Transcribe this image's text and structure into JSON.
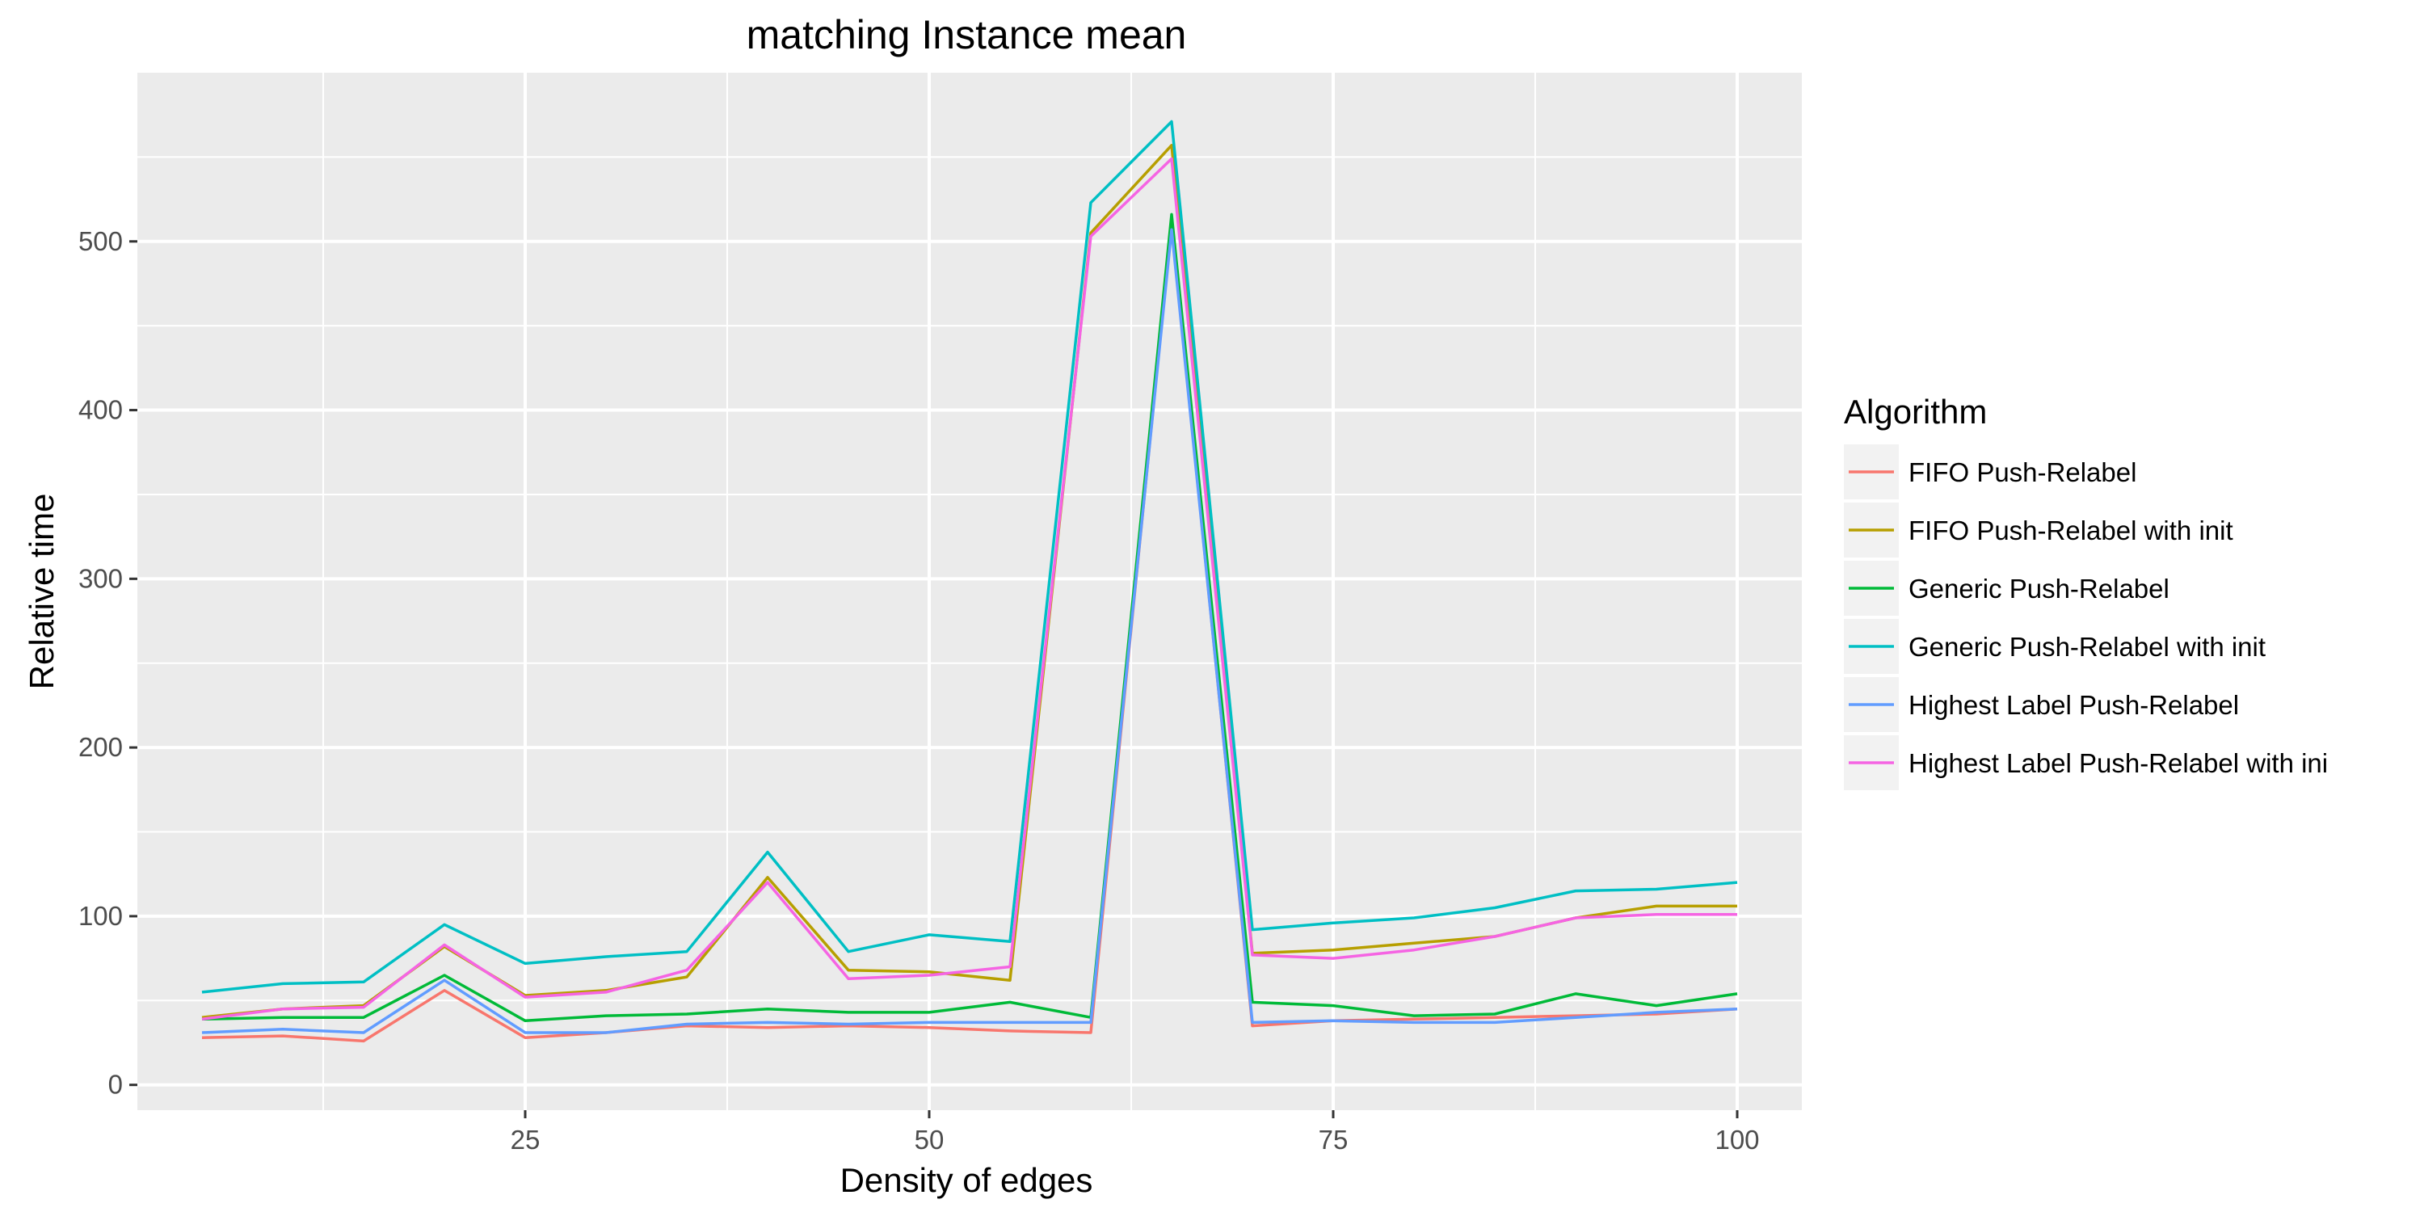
{
  "chart_data": {
    "type": "line",
    "title": "matching Instance mean",
    "xlabel": "Density of edges",
    "ylabel": "Relative time",
    "xlim": [
      1,
      104
    ],
    "ylim": [
      -15,
      600
    ],
    "x_ticks": [
      25,
      50,
      75,
      100
    ],
    "y_ticks": [
      0,
      100,
      200,
      300,
      400,
      500
    ],
    "grid": true,
    "legend": {
      "title": "Algorithm",
      "position": "right"
    },
    "x": [
      5,
      10,
      15,
      20,
      25,
      30,
      35,
      40,
      45,
      50,
      55,
      60,
      65,
      70,
      75,
      80,
      85,
      90,
      95,
      100
    ],
    "series": [
      {
        "name": "FIFO Push-Relabel",
        "color": "#F8766D",
        "values": [
          28,
          29,
          26,
          56,
          28,
          31,
          35,
          34,
          35,
          34,
          32,
          31,
          510,
          35,
          38,
          39,
          40,
          41,
          42,
          45
        ]
      },
      {
        "name": "FIFO Push-Relabel with init",
        "color": "#B79F00",
        "values": [
          40,
          45,
          47,
          82,
          53,
          56,
          64,
          123,
          68,
          67,
          62,
          505,
          557,
          78,
          80,
          84,
          88,
          99,
          106,
          106
        ]
      },
      {
        "name": "Generic Push-Relabel",
        "color": "#00BA38",
        "values": [
          39,
          40,
          40,
          65,
          38,
          41,
          42,
          45,
          43,
          43,
          49,
          40,
          516,
          49,
          47,
          41,
          42,
          54,
          47,
          54
        ]
      },
      {
        "name": "Generic Push-Relabel with init",
        "color": "#00BFC4",
        "values": [
          55,
          60,
          61,
          95,
          72,
          76,
          79,
          138,
          79,
          89,
          85,
          523,
          571,
          92,
          96,
          99,
          105,
          115,
          116,
          120
        ]
      },
      {
        "name": "Highest Label Push-Relabel",
        "color": "#619CFF",
        "values": [
          31,
          33,
          31,
          62,
          31,
          31,
          36,
          37,
          36,
          37,
          37,
          37,
          507,
          37,
          38,
          37,
          37,
          40,
          43,
          45
        ]
      },
      {
        "name": "Highest Label Push-Relabel with ini",
        "color": "#F564E3",
        "values": [
          39,
          45,
          46,
          83,
          52,
          55,
          68,
          120,
          63,
          65,
          70,
          503,
          549,
          77,
          75,
          80,
          88,
          99,
          101,
          101
        ]
      }
    ]
  }
}
